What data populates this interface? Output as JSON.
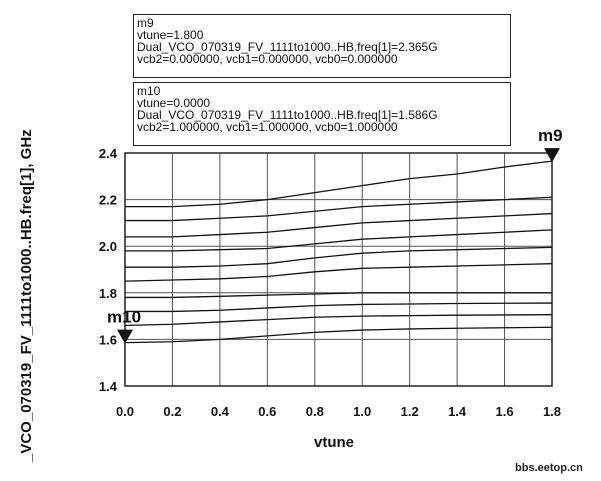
{
  "chart_data": {
    "type": "line",
    "xlabel": "vtune",
    "ylabel": "_VCO_070319_FV_1111to1000..HB.freq[1], GHz",
    "xlim": [
      0.0,
      1.8
    ],
    "ylim": [
      1.4,
      2.4
    ],
    "x_ticks": [
      "0.0",
      "0.2",
      "0.4",
      "0.6",
      "0.8",
      "1.0",
      "1.2",
      "1.4",
      "1.6",
      "1.8"
    ],
    "y_ticks": [
      "1.4",
      "1.6",
      "1.8",
      "2.0",
      "2.2",
      "2.4"
    ],
    "grid": true,
    "x": [
      0.0,
      0.2,
      0.4,
      0.6,
      0.8,
      1.0,
      1.2,
      1.4,
      1.6,
      1.8
    ],
    "series": [
      {
        "values": [
          2.17,
          2.17,
          2.18,
          2.2,
          2.23,
          2.26,
          2.29,
          2.31,
          2.34,
          2.365
        ]
      },
      {
        "values": [
          2.11,
          2.11,
          2.12,
          2.13,
          2.15,
          2.17,
          2.18,
          2.19,
          2.2,
          2.21
        ]
      },
      {
        "values": [
          2.04,
          2.04,
          2.05,
          2.06,
          2.08,
          2.1,
          2.11,
          2.12,
          2.13,
          2.14
        ]
      },
      {
        "values": [
          1.98,
          1.98,
          1.985,
          1.99,
          2.01,
          2.03,
          2.04,
          2.05,
          2.06,
          2.07
        ]
      },
      {
        "values": [
          1.91,
          1.91,
          1.915,
          1.925,
          1.95,
          1.97,
          1.98,
          1.985,
          1.99,
          1.995
        ]
      },
      {
        "values": [
          1.85,
          1.855,
          1.86,
          1.87,
          1.89,
          1.905,
          1.91,
          1.915,
          1.92,
          1.925
        ]
      },
      {
        "values": [
          1.78,
          1.78,
          1.785,
          1.79,
          1.795,
          1.8,
          1.8,
          1.8,
          1.8,
          1.8
        ]
      },
      {
        "values": [
          1.72,
          1.72,
          1.725,
          1.735,
          1.745,
          1.75,
          1.752,
          1.754,
          1.755,
          1.756
        ]
      },
      {
        "values": [
          1.66,
          1.665,
          1.675,
          1.685,
          1.695,
          1.7,
          1.702,
          1.704,
          1.705,
          1.706
        ]
      },
      {
        "values": [
          1.586,
          1.59,
          1.6,
          1.615,
          1.63,
          1.64,
          1.645,
          1.648,
          1.65,
          1.652
        ]
      }
    ],
    "markers": [
      {
        "name": "m9",
        "x": 1.8,
        "y": 2.365,
        "lines": [
          "m9",
          "vtune=1.800",
          "Dual_VCO_070319_FV_1111to1000..HB.freq[1]=2.365G",
          "vcb2=0.000000, vcb1=0.000000, vcb0=0.000000"
        ]
      },
      {
        "name": "m10",
        "x": 0.0,
        "y": 1.586,
        "lines": [
          "m10",
          "vtune=0.0000",
          "Dual_VCO_070319_FV_1111to1000..HB.freq[1]=1.586G",
          "vcb2=1.000000, vcb1=1.000000, vcb0=1.000000"
        ]
      }
    ],
    "line_color": "#111111"
  },
  "watermark": "bbs.eetop.cn"
}
